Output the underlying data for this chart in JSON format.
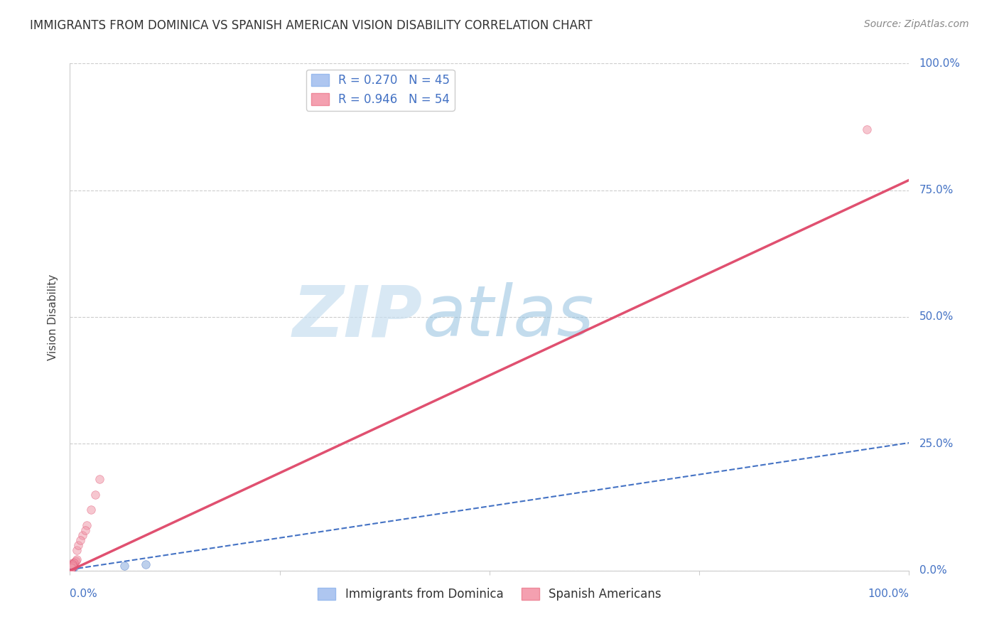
{
  "title": "IMMIGRANTS FROM DOMINICA VS SPANISH AMERICAN VISION DISABILITY CORRELATION CHART",
  "source": "Source: ZipAtlas.com",
  "ylabel": "Vision Disability",
  "xlim": [
    0,
    1
  ],
  "ylim": [
    0,
    1
  ],
  "ytick_vals": [
    0,
    0.25,
    0.5,
    0.75,
    1.0
  ],
  "ytick_labels": [
    "0.0%",
    "25.0%",
    "50.0%",
    "75.0%",
    "100.0%"
  ],
  "grid_color": "#cccccc",
  "background_color": "#ffffff",
  "blue_scatter_x": [
    0.001,
    0.002,
    0.003,
    0.001,
    0.004,
    0.003,
    0.002,
    0.003,
    0.005,
    0.001,
    0.002,
    0.003,
    0.004,
    0.001,
    0.002,
    0.003,
    0.001,
    0.002,
    0.004,
    0.003,
    0.002,
    0.001,
    0.003,
    0.002,
    0.001,
    0.003,
    0.002,
    0.001,
    0.003,
    0.002,
    0.001,
    0.002,
    0.001,
    0.002,
    0.003,
    0.001,
    0.002,
    0.001,
    0.002,
    0.003,
    0.002,
    0.001,
    0.065,
    0.09,
    0.001
  ],
  "blue_scatter_y": [
    0.005,
    0.008,
    0.01,
    0.006,
    0.009,
    0.007,
    0.008,
    0.01,
    0.007,
    0.005,
    0.006,
    0.009,
    0.008,
    0.005,
    0.007,
    0.01,
    0.005,
    0.006,
    0.009,
    0.007,
    0.008,
    0.005,
    0.009,
    0.007,
    0.005,
    0.008,
    0.006,
    0.005,
    0.009,
    0.007,
    0.005,
    0.008,
    0.005,
    0.007,
    0.009,
    0.005,
    0.006,
    0.005,
    0.008,
    0.009,
    0.007,
    0.005,
    0.01,
    0.012,
    0.005
  ],
  "pink_scatter_x": [
    0.001,
    0.002,
    0.003,
    0.001,
    0.004,
    0.003,
    0.002,
    0.003,
    0.005,
    0.001,
    0.002,
    0.003,
    0.004,
    0.001,
    0.002,
    0.003,
    0.001,
    0.002,
    0.004,
    0.003,
    0.005,
    0.006,
    0.007,
    0.008,
    0.002,
    0.003,
    0.004,
    0.001,
    0.002,
    0.003,
    0.001,
    0.002,
    0.001,
    0.003,
    0.004,
    0.005,
    0.02,
    0.025,
    0.035,
    0.015,
    0.03,
    0.018,
    0.008,
    0.01,
    0.012,
    0.001,
    0.002,
    0.003,
    0.001,
    0.002,
    0.002,
    0.001,
    0.003,
    0.95
  ],
  "pink_scatter_y": [
    0.005,
    0.01,
    0.015,
    0.007,
    0.012,
    0.009,
    0.008,
    0.013,
    0.01,
    0.005,
    0.008,
    0.012,
    0.01,
    0.006,
    0.009,
    0.013,
    0.005,
    0.008,
    0.011,
    0.009,
    0.015,
    0.018,
    0.02,
    0.022,
    0.007,
    0.01,
    0.013,
    0.006,
    0.008,
    0.011,
    0.005,
    0.009,
    0.005,
    0.01,
    0.013,
    0.015,
    0.09,
    0.12,
    0.18,
    0.07,
    0.15,
    0.08,
    0.04,
    0.05,
    0.06,
    0.005,
    0.008,
    0.012,
    0.005,
    0.007,
    0.006,
    0.005,
    0.009,
    0.87
  ],
  "blue_line_slope": 0.25,
  "blue_line_intercept": 0.002,
  "pink_line_slope": 0.77,
  "pink_line_intercept": 0.0,
  "scatter_alpha": 0.55,
  "scatter_size": 70,
  "blue_dot_color": "#88aadd",
  "blue_dot_edge": "#4472c4",
  "pink_dot_color": "#f099aa",
  "pink_dot_edge": "#e05070",
  "blue_line_color": "#4472c4",
  "pink_line_color": "#e05070",
  "title_fontsize": 12,
  "axis_label_fontsize": 11,
  "tick_label_fontsize": 11,
  "legend_fontsize": 12,
  "source_fontsize": 10
}
